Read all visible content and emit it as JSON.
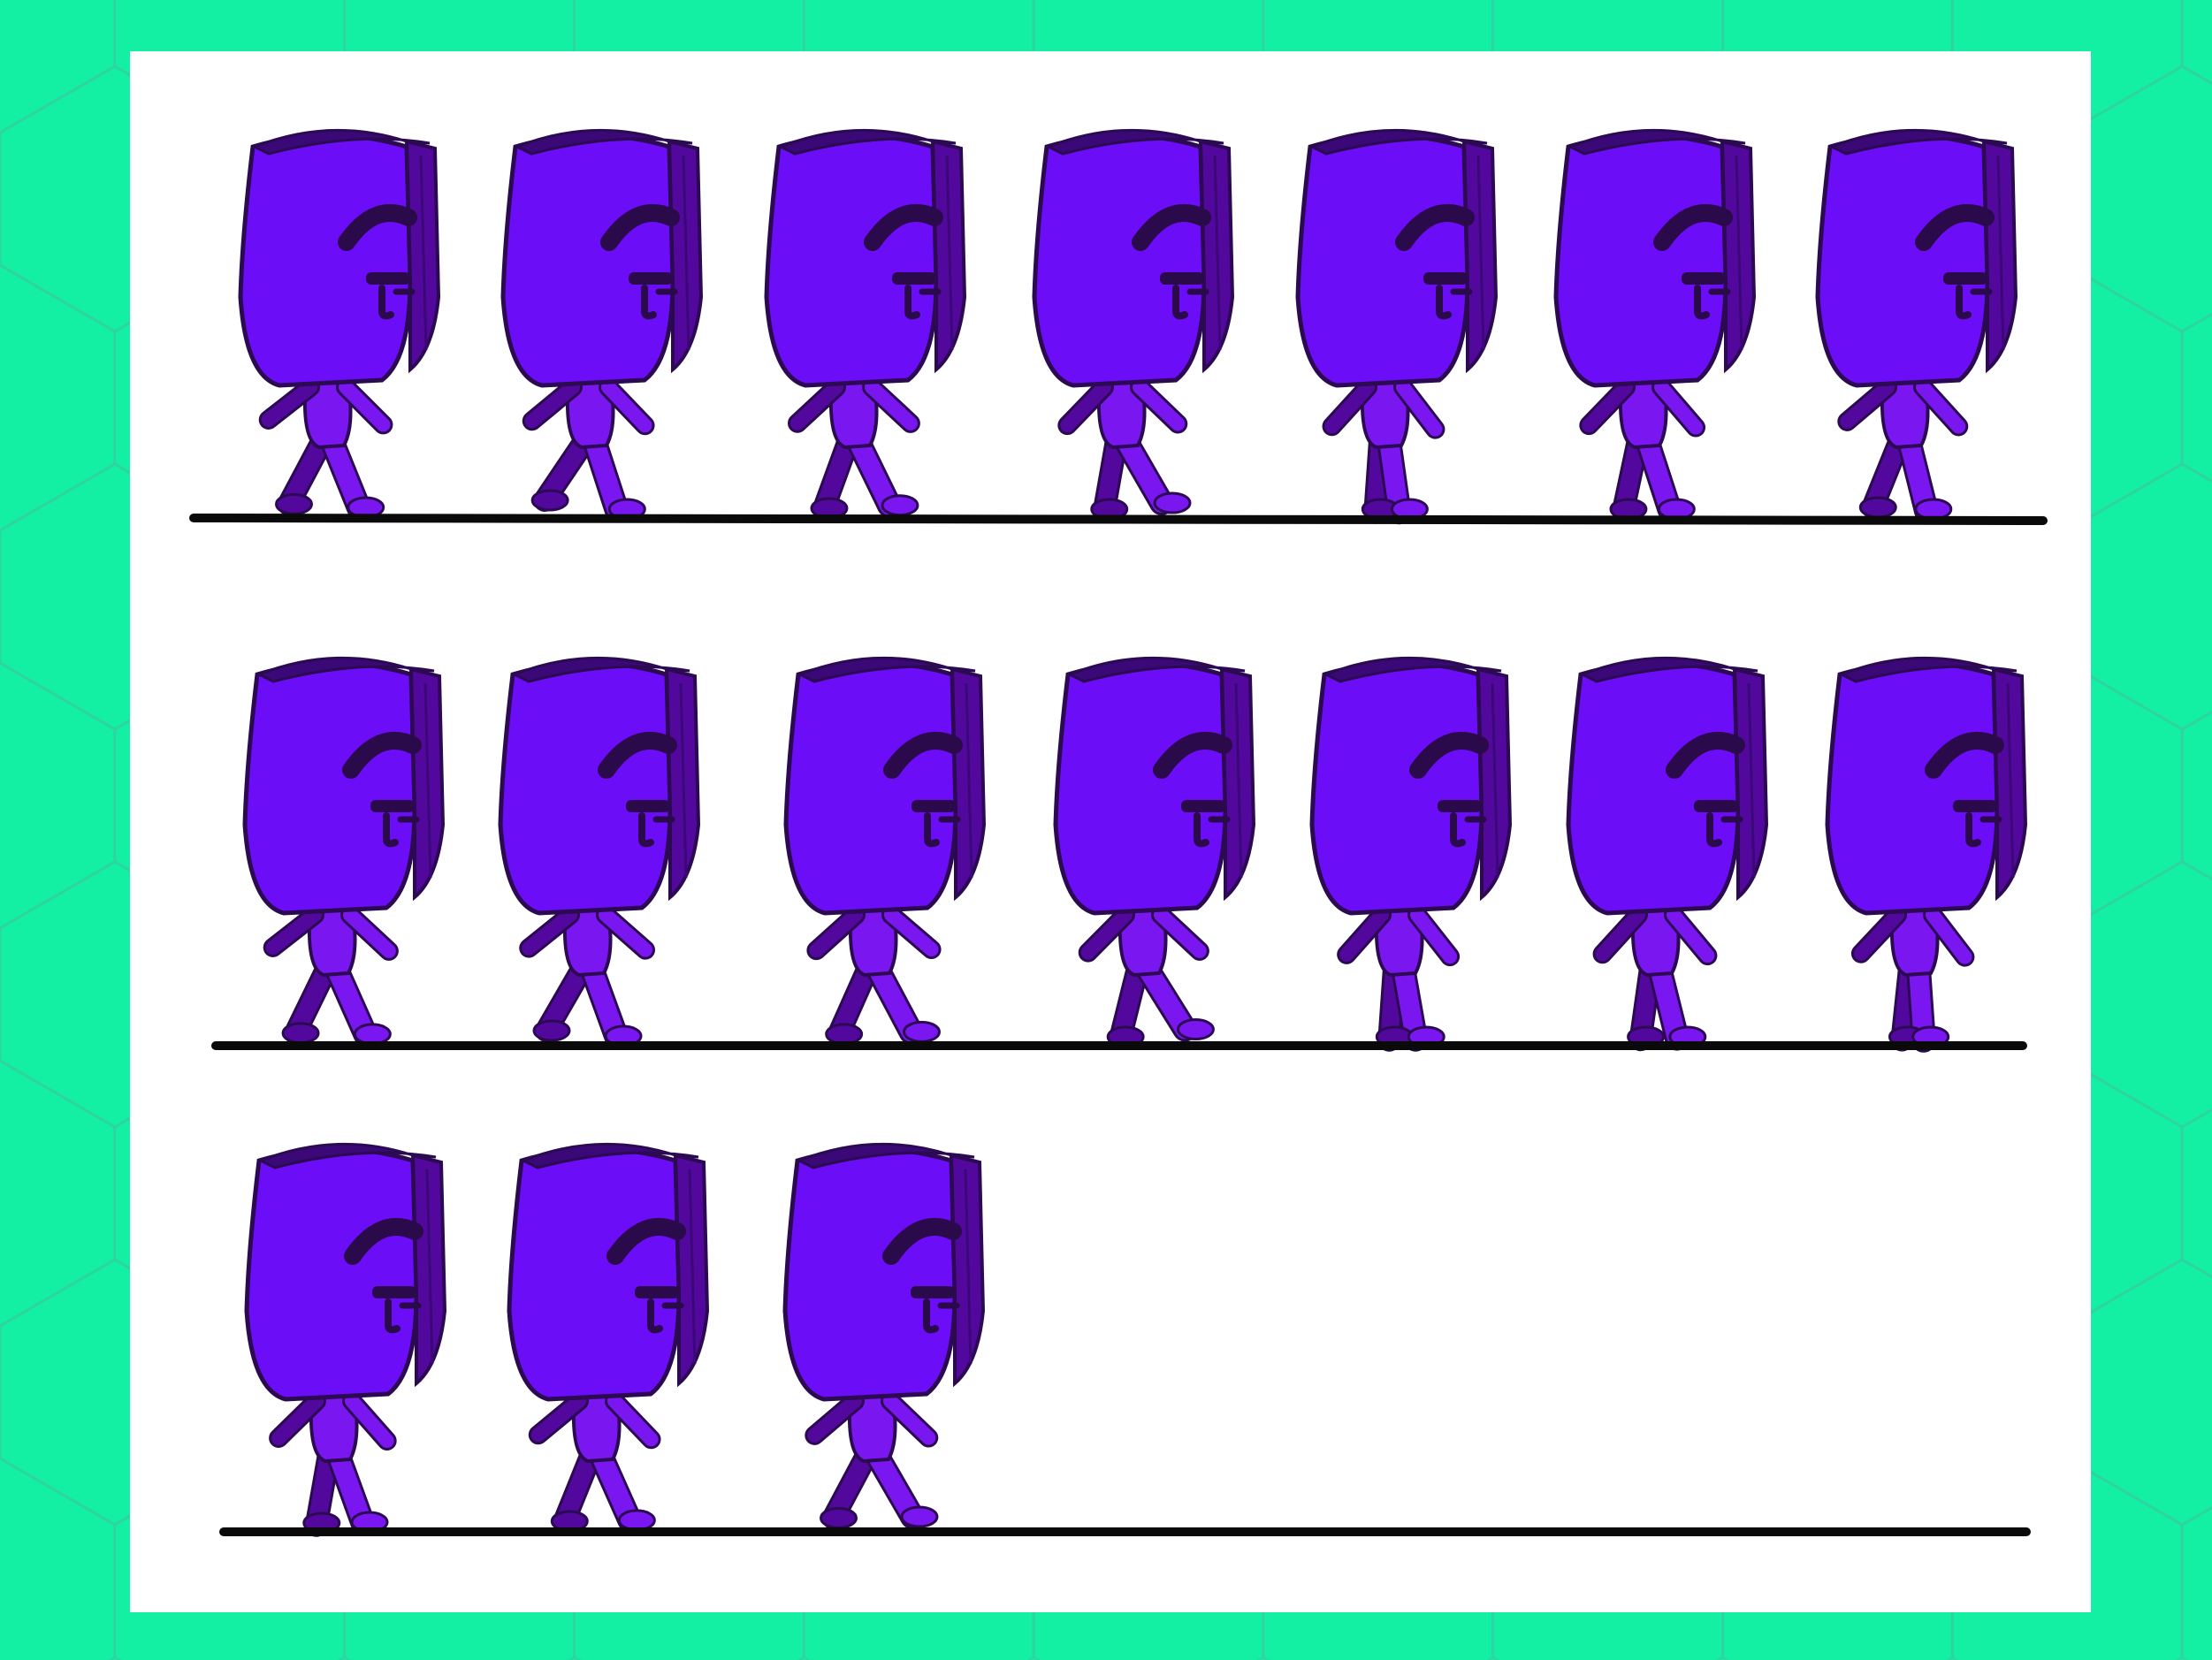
{
  "colors": {
    "background": "#14f0a3",
    "pattern_line": "#2fd3a0",
    "sheet": "#ffffff",
    "ground_line": "#0a0a0a",
    "head_fill": "#6b0df7",
    "head_side": "#52089c",
    "head_top": "#3a0877",
    "body_fill": "#7a16f0",
    "outline": "#2b0a52",
    "face_mark": "#2a0a4a"
  },
  "sprite_sheet": {
    "character": "box-head-walker",
    "rows": [
      {
        "frames": [
          {
            "pose": 0
          },
          {
            "pose": 1
          },
          {
            "pose": 2
          },
          {
            "pose": 3
          },
          {
            "pose": 4
          },
          {
            "pose": 5
          },
          {
            "pose": 6
          }
        ]
      },
      {
        "frames": [
          {
            "pose": 7
          },
          {
            "pose": 8
          },
          {
            "pose": 9
          },
          {
            "pose": 10
          },
          {
            "pose": 11
          },
          {
            "pose": 12
          },
          {
            "pose": 13
          }
        ]
      },
      {
        "frames": [
          {
            "pose": 14
          },
          {
            "pose": 15
          },
          {
            "pose": 16
          }
        ]
      }
    ]
  }
}
